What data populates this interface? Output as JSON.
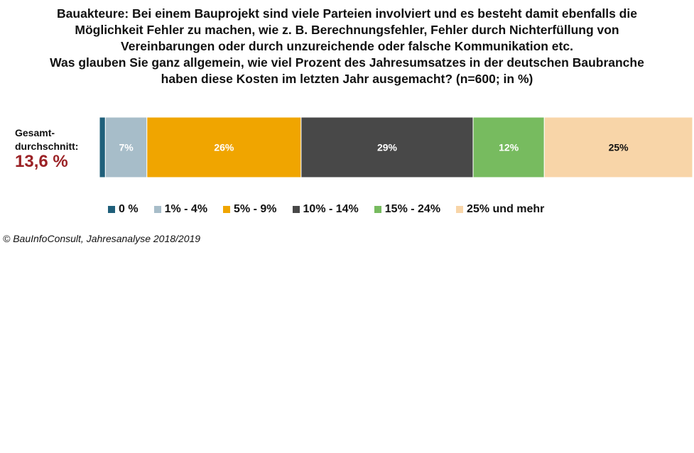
{
  "title_lines": [
    "Bauakteure: Bei einem Bauprojekt sind viele Parteien involviert und es besteht damit ebenfalls die",
    "Möglichkeit Fehler zu machen, wie z. B. Berechnungsfehler, Fehler durch Nichterfüllung von",
    "Vereinbarungen oder durch unzureichende oder falsche Kommunikation etc.",
    "Was glauben Sie ganz allgemein, wie viel Prozent des Jahresumsatzes in der deutschen Baubranche",
    "haben diese Kosten im letzten Jahr ausgemacht? (n=600; in %)"
  ],
  "average": {
    "label_line1": "Gesamt-",
    "label_line2": "durchschnitt:",
    "value": "13,6 %"
  },
  "source": "© BauInfoConsult, Jahresanalyse 2018/2019",
  "chart_data": {
    "type": "bar",
    "orientation": "horizontal-stacked-100",
    "categories": [
      "Gesamt"
    ],
    "series": [
      {
        "name": "0 %",
        "values": [
          1
        ],
        "label": "",
        "color": "#1f5f7a",
        "label_color": "#ffffff"
      },
      {
        "name": "1% - 4%",
        "values": [
          7
        ],
        "label": "7%",
        "color": "#a7bdc9",
        "label_color": "#ffffff"
      },
      {
        "name": "5% - 9%",
        "values": [
          26
        ],
        "label": "26%",
        "color": "#f0a500",
        "label_color": "#ffffff"
      },
      {
        "name": "10% - 14%",
        "values": [
          29
        ],
        "label": "29%",
        "color": "#484848",
        "label_color": "#ffffff"
      },
      {
        "name": "15% - 24%",
        "values": [
          12
        ],
        "label": "12%",
        "color": "#77bb5f",
        "label_color": "#ffffff"
      },
      {
        "name": "25% und mehr",
        "values": [
          25
        ],
        "label": "25%",
        "color": "#f8d5a8",
        "label_color": "#111111"
      }
    ],
    "xlim": [
      0,
      100
    ],
    "legend": "bottom"
  }
}
